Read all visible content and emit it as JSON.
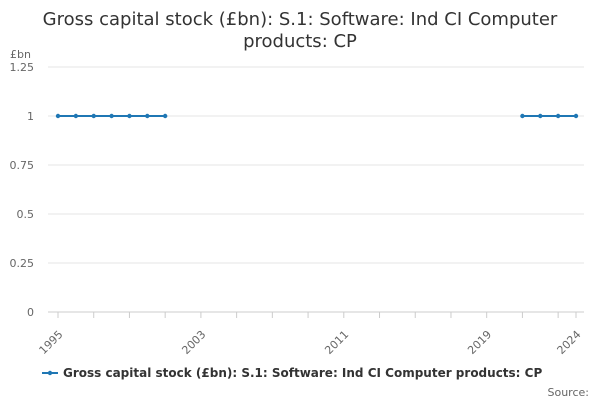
{
  "chart_data": {
    "type": "line",
    "title_lines": [
      "Gross capital stock (£bn): S.1: Software: Ind CI Computer",
      "products: CP"
    ],
    "unit_label": "£bn",
    "ylim": [
      0,
      1.25
    ],
    "yticks": [
      0,
      0.25,
      0.5,
      0.75,
      1,
      1.25
    ],
    "ytick_labels": [
      "0",
      "0.25",
      "0.5",
      "0.75",
      "1",
      "1.25"
    ],
    "xlim": [
      1995,
      2024
    ],
    "xtick_labels": [
      "1995",
      "2003",
      "2011",
      "2019",
      "2024"
    ],
    "grid": true,
    "legend_position": "bottom",
    "series": [
      {
        "name": "Gross capital stock (£bn): S.1: Software: Ind CI Computer products: CP",
        "color": "#1f77b4",
        "points": [
          {
            "x": 1995,
            "y": 1
          },
          {
            "x": 1996,
            "y": 1
          },
          {
            "x": 1997,
            "y": 1
          },
          {
            "x": 1998,
            "y": 1
          },
          {
            "x": 1999,
            "y": 1
          },
          {
            "x": 2000,
            "y": 1
          },
          {
            "x": 2001,
            "y": 1
          },
          {
            "x": 2021,
            "y": 1
          },
          {
            "x": 2022,
            "y": 1
          },
          {
            "x": 2023,
            "y": 1
          },
          {
            "x": 2024,
            "y": 1
          }
        ]
      }
    ]
  },
  "source_label": "Source:"
}
